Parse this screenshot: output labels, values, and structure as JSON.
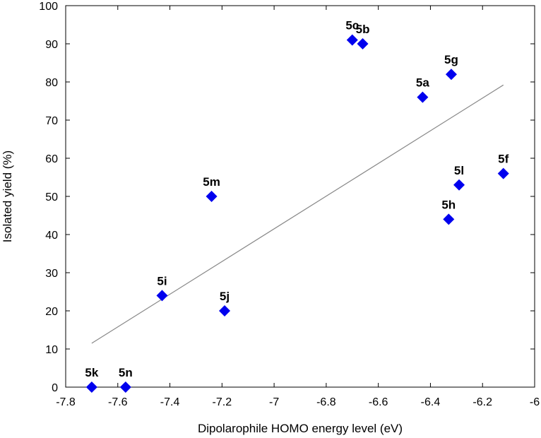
{
  "chart_data": {
    "type": "scatter",
    "title": "",
    "xlabel": "Dipolarophile HOMO energy level (eV)",
    "ylabel": "Isolated yield (%)",
    "xlim": [
      -7.8,
      -6.0
    ],
    "ylim": [
      0,
      100
    ],
    "xticks": [
      -7.8,
      -7.6,
      -7.4,
      -7.2,
      -7.0,
      -6.8,
      -6.6,
      -6.4,
      -6.2,
      -6.0
    ],
    "xtick_labels": [
      "-7.8",
      "-7.6",
      "-7.4",
      "-7.2",
      "-7",
      "-6.8",
      "-6.6",
      "-6.4",
      "-6.2",
      "-6"
    ],
    "yticks": [
      0,
      10,
      20,
      30,
      40,
      50,
      60,
      70,
      80,
      90,
      100
    ],
    "ytick_labels": [
      "0",
      "10",
      "20",
      "30",
      "40",
      "50",
      "60",
      "70",
      "80",
      "90",
      "100"
    ],
    "grid": false,
    "marker_color": "#0000ee",
    "line_color": "#888888",
    "points": [
      {
        "label": "5k",
        "x": -7.7,
        "y": 0
      },
      {
        "label": "5n",
        "x": -7.57,
        "y": 0
      },
      {
        "label": "5i",
        "x": -7.43,
        "y": 24
      },
      {
        "label": "5j",
        "x": -7.19,
        "y": 20
      },
      {
        "label": "5m",
        "x": -7.24,
        "y": 50
      },
      {
        "label": "5c",
        "x": -6.7,
        "y": 91
      },
      {
        "label": "5b",
        "x": -6.66,
        "y": 90
      },
      {
        "label": "5a",
        "x": -6.43,
        "y": 76
      },
      {
        "label": "5g",
        "x": -6.32,
        "y": 82
      },
      {
        "label": "5h",
        "x": -6.33,
        "y": 44
      },
      {
        "label": "5l",
        "x": -6.29,
        "y": 53
      },
      {
        "label": "5f",
        "x": -6.12,
        "y": 56
      }
    ],
    "trendline": {
      "x": [
        -7.7,
        -6.12
      ],
      "y": [
        11.5,
        79.2
      ]
    }
  }
}
